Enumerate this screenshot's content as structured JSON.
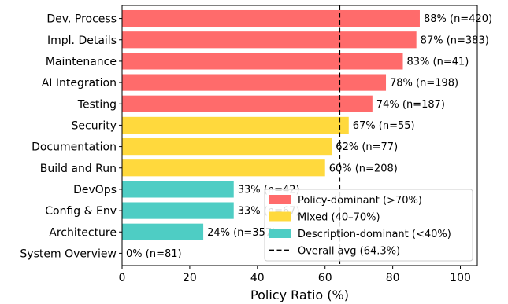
{
  "chart_data": {
    "type": "bar",
    "orientation": "horizontal",
    "title": "",
    "xlabel": "Policy Ratio (%)",
    "ylabel": "",
    "xlim": [
      0,
      105
    ],
    "xticks": [
      0,
      20,
      40,
      60,
      80,
      100
    ],
    "xtick_labels": [
      "0",
      "20",
      "40",
      "60",
      "80",
      "100"
    ],
    "grid": false,
    "legend_position": "lower-right",
    "categories": [
      "Dev. Process",
      "Impl. Details",
      "Maintenance",
      "AI Integration",
      "Testing",
      "Security",
      "Documentation",
      "Build and Run",
      "DevOps",
      "Config & Env",
      "Architecture",
      "System Overview"
    ],
    "values": [
      88,
      87,
      83,
      78,
      74,
      67,
      62,
      60,
      33,
      33,
      24,
      0
    ],
    "value_labels": [
      "88% (n=420)",
      "87% (n=383)",
      "83% (n=41)",
      "78% (n=198)",
      "74% (n=187)",
      "67% (n=55)",
      "62% (n=77)",
      "60% (n=208)",
      "33% (n=42)",
      "33% (n=67)",
      "24% (n=357)",
      "0% (n=81)"
    ],
    "groups": [
      "policy",
      "policy",
      "policy",
      "policy",
      "policy",
      "mixed",
      "mixed",
      "mixed",
      "description",
      "description",
      "description",
      "description"
    ],
    "group_colors": {
      "policy": "#ff6b6b",
      "mixed": "#ffd93d",
      "description": "#4ecdc4"
    },
    "average": {
      "value": 64.3,
      "color": "#000000",
      "style": "dashed"
    },
    "legend": [
      {
        "key": "policy",
        "label": "Policy-dominant (>70%)",
        "kind": "patch"
      },
      {
        "key": "mixed",
        "label": "Mixed (40–70%)",
        "kind": "patch"
      },
      {
        "key": "description",
        "label": "Description-dominant (<40%)",
        "kind": "patch"
      },
      {
        "key": "average",
        "label": "Overall avg (64.3%)",
        "kind": "line"
      }
    ]
  }
}
